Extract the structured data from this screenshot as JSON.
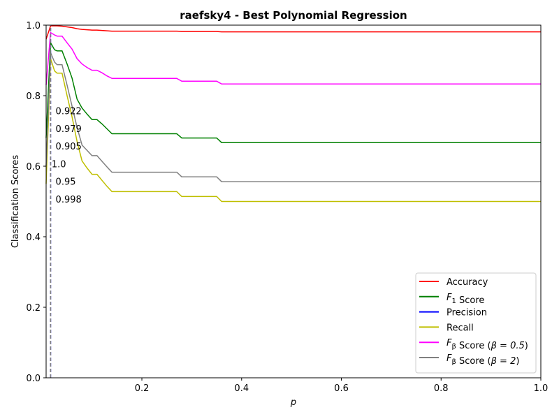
{
  "chart_data": {
    "type": "line",
    "title": "raefsky4 - Best Polynomial Regression",
    "xlabel": "p",
    "ylabel": "Classification Scores",
    "xlim": [
      0.008,
      1.0
    ],
    "ylim": [
      0.0,
      1.0
    ],
    "xticks": [
      0.2,
      0.4,
      0.6,
      0.8,
      1.0
    ],
    "xtick_labels": [
      "0.2",
      "0.4",
      "0.6",
      "0.8",
      "1.0"
    ],
    "yticks": [
      0.0,
      0.2,
      0.4,
      0.6,
      0.8,
      1.0
    ],
    "ytick_labels": [
      "0.0",
      "0.2",
      "0.4",
      "0.6",
      "0.8",
      "1.0"
    ],
    "grid": false,
    "legend_position": "lower-right",
    "best_p": 0.017,
    "series": [
      {
        "name": "Accuracy",
        "color": "#ff0000",
        "x": [
          0.008,
          0.017,
          0.03,
          0.04,
          0.05,
          0.06,
          0.07,
          0.08,
          0.09,
          0.1,
          0.11,
          0.12,
          0.13,
          0.14,
          0.15,
          0.2,
          0.25,
          0.27,
          0.28,
          0.3,
          0.35,
          0.36,
          0.4,
          0.5,
          0.6,
          0.7,
          0.8,
          0.9,
          1.0
        ],
        "y": [
          0.96,
          0.998,
          0.998,
          0.997,
          0.995,
          0.993,
          0.99,
          0.988,
          0.987,
          0.986,
          0.986,
          0.985,
          0.984,
          0.983,
          0.983,
          0.983,
          0.983,
          0.983,
          0.982,
          0.982,
          0.982,
          0.981,
          0.981,
          0.981,
          0.981,
          0.981,
          0.981,
          0.981,
          0.981
        ]
      },
      {
        "name": "$F_1$ Score",
        "color": "#008000",
        "x": [
          0.008,
          0.017,
          0.025,
          0.03,
          0.04,
          0.05,
          0.06,
          0.07,
          0.08,
          0.09,
          0.1,
          0.11,
          0.12,
          0.13,
          0.14,
          0.15,
          0.2,
          0.25,
          0.27,
          0.28,
          0.3,
          0.35,
          0.36,
          0.4,
          0.5,
          0.6,
          0.7,
          0.8,
          0.9,
          1.0
        ],
        "y": [
          0.68,
          0.95,
          0.93,
          0.927,
          0.927,
          0.89,
          0.85,
          0.79,
          0.765,
          0.748,
          0.732,
          0.732,
          0.72,
          0.706,
          0.692,
          0.692,
          0.692,
          0.692,
          0.692,
          0.68,
          0.68,
          0.68,
          0.667,
          0.667,
          0.667,
          0.667,
          0.667,
          0.667,
          0.667,
          0.667
        ]
      },
      {
        "name": "Precision",
        "color": "#0000ff",
        "x": [
          0.017
        ],
        "y": [
          1.0
        ]
      },
      {
        "name": "Recall",
        "color": "#bfbf00",
        "x": [
          0.008,
          0.017,
          0.025,
          0.03,
          0.04,
          0.05,
          0.06,
          0.07,
          0.08,
          0.09,
          0.1,
          0.11,
          0.12,
          0.13,
          0.14,
          0.15,
          0.2,
          0.25,
          0.27,
          0.28,
          0.3,
          0.35,
          0.36,
          0.4,
          0.5,
          0.6,
          0.7,
          0.8,
          0.9,
          1.0
        ],
        "y": [
          0.55,
          0.905,
          0.87,
          0.864,
          0.864,
          0.8,
          0.74,
          0.67,
          0.615,
          0.595,
          0.577,
          0.577,
          0.56,
          0.543,
          0.528,
          0.528,
          0.528,
          0.528,
          0.528,
          0.514,
          0.514,
          0.514,
          0.5,
          0.5,
          0.5,
          0.5,
          0.5,
          0.5,
          0.5,
          0.5
        ]
      },
      {
        "name": "$F_\\beta$ Score ($\\beta=0.5$)",
        "color": "#ff00ff",
        "x": [
          0.008,
          0.017,
          0.025,
          0.03,
          0.04,
          0.05,
          0.06,
          0.07,
          0.08,
          0.09,
          0.1,
          0.11,
          0.12,
          0.13,
          0.14,
          0.15,
          0.2,
          0.25,
          0.27,
          0.28,
          0.3,
          0.35,
          0.36,
          0.4,
          0.5,
          0.6,
          0.7,
          0.8,
          0.9,
          1.0
        ],
        "y": [
          0.83,
          0.979,
          0.972,
          0.969,
          0.969,
          0.95,
          0.932,
          0.905,
          0.89,
          0.88,
          0.872,
          0.872,
          0.865,
          0.856,
          0.849,
          0.849,
          0.849,
          0.849,
          0.849,
          0.841,
          0.841,
          0.841,
          0.833,
          0.833,
          0.833,
          0.833,
          0.833,
          0.833,
          0.833,
          0.833
        ]
      },
      {
        "name": "$F_\\beta$ Score ($\\beta=2$)",
        "color": "#808080",
        "x": [
          0.008,
          0.017,
          0.025,
          0.03,
          0.04,
          0.05,
          0.06,
          0.07,
          0.08,
          0.09,
          0.1,
          0.11,
          0.12,
          0.13,
          0.14,
          0.15,
          0.2,
          0.25,
          0.27,
          0.28,
          0.3,
          0.35,
          0.36,
          0.4,
          0.5,
          0.6,
          0.7,
          0.8,
          0.9,
          1.0
        ],
        "y": [
          0.6,
          0.922,
          0.895,
          0.888,
          0.888,
          0.83,
          0.77,
          0.71,
          0.66,
          0.645,
          0.63,
          0.63,
          0.614,
          0.598,
          0.583,
          0.583,
          0.583,
          0.583,
          0.583,
          0.57,
          0.57,
          0.57,
          0.556,
          0.556,
          0.556,
          0.556,
          0.556,
          0.556,
          0.556,
          0.556
        ]
      }
    ],
    "annotations": [
      {
        "text": "0.922",
        "x": 0.027,
        "y": 0.757,
        "color": "#808080"
      },
      {
        "text": "0.979",
        "x": 0.027,
        "y": 0.707,
        "color": "#ff00ff"
      },
      {
        "text": "0.905",
        "x": 0.027,
        "y": 0.657,
        "color": "#bfbf00"
      },
      {
        "text": "1.0",
        "x": 0.019,
        "y": 0.607,
        "color": "#0000ff"
      },
      {
        "text": "0.95",
        "x": 0.027,
        "y": 0.557,
        "color": "#008000"
      },
      {
        "text": "0.998",
        "x": 0.027,
        "y": 0.507,
        "color": "#ff0000"
      }
    ]
  }
}
